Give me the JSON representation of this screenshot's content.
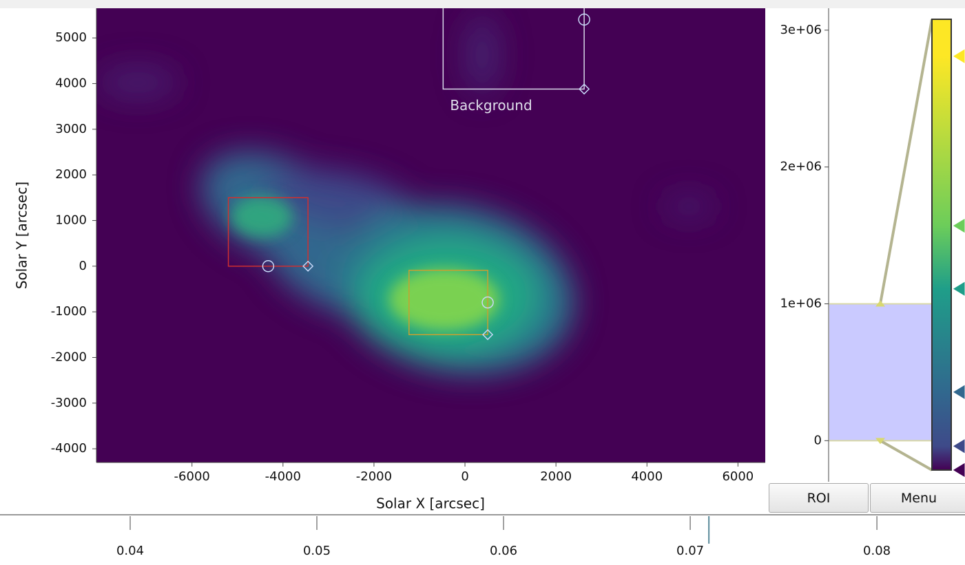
{
  "chart_data": [
    {
      "type": "image",
      "xlabel": "Solar X [arcsec]",
      "ylabel": "Solar Y [arcsec]",
      "xlim": [
        -8100,
        6600
      ],
      "ylim": [
        -4300,
        5650
      ],
      "xticks": [
        -6000,
        -4000,
        -2000,
        0,
        2000,
        4000,
        6000
      ],
      "yticks": [
        -4000,
        -3000,
        -2000,
        -1000,
        0,
        1000,
        2000,
        3000,
        4000,
        5000
      ],
      "rois": [
        {
          "color": "#d03030",
          "x": -5200,
          "y": 0,
          "width": 1750,
          "height": 1500
        },
        {
          "color": "#c8a030",
          "x": -1230,
          "y": -1500,
          "width": 1730,
          "height": 1410
        },
        {
          "label": "Background",
          "color": "#d8d8e8",
          "x": -480,
          "y": 3880,
          "width": 3100,
          "height": 2000
        }
      ]
    },
    {
      "type": "colorbar",
      "ylim": [
        -300000,
        3160000
      ],
      "yticks": [
        0,
        {
          "value": 1000000,
          "label": "1e+06"
        },
        {
          "value": 2000000,
          "label": "2e+06"
        },
        {
          "value": 3000000,
          "label": "3e+06"
        }
      ],
      "levels": [
        0,
        1000000
      ],
      "colormap": [
        {
          "position": 0,
          "color": "#440154"
        },
        {
          "position": 0.053,
          "color": "#3e4a89"
        },
        {
          "position": 0.173,
          "color": "#31688e"
        },
        {
          "position": 0.402,
          "color": "#1f9e89"
        },
        {
          "position": 0.542,
          "color": "#6ccd5a"
        },
        {
          "position": 0.918,
          "color": "#fde725"
        }
      ]
    },
    {
      "type": "timeline",
      "xlim": [
        0.03358,
        0.08472
      ],
      "xticks": [
        0.04,
        0.05,
        0.06,
        0.07,
        0.08
      ],
      "marker": 0.071
    }
  ],
  "buttons": [
    "ROI",
    "Menu"
  ]
}
